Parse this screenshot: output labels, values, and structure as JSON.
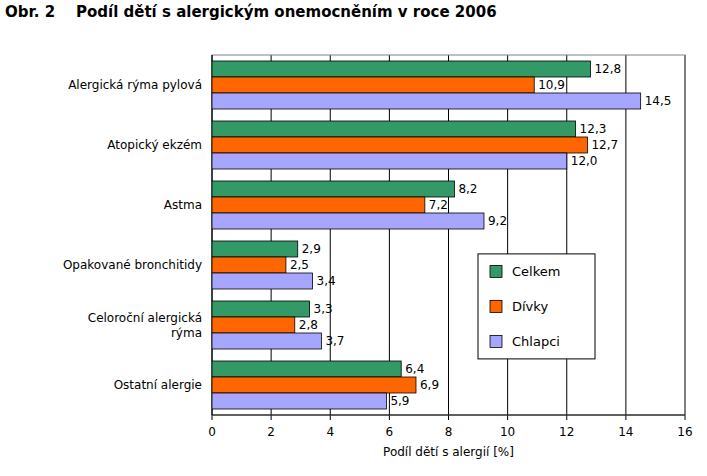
{
  "chart_data": {
    "type": "bar",
    "orientation": "horizontal",
    "title": "Obr. 2    Podíl dětí s alergickým onemocněním v roce 2006",
    "categories": [
      "Alergická rýma pylová",
      "Atopický ekzém",
      "Astma",
      "Opakované bronchitidy",
      "Celoroční alergická rýma",
      "Ostatní alergie"
    ],
    "series": [
      {
        "name": "Celkem",
        "color": "#339966",
        "values": [
          12.8,
          12.3,
          8.2,
          2.9,
          3.3,
          6.4
        ],
        "value_labels": [
          "12,8",
          "12,3",
          "8,2",
          "2,9",
          "3,3",
          "6,4"
        ]
      },
      {
        "name": "Dívky",
        "color": "#ff6600",
        "values": [
          10.9,
          12.7,
          7.2,
          2.5,
          2.8,
          6.9
        ],
        "value_labels": [
          "10,9",
          "12,7",
          "7,2",
          "2,5",
          "2,8",
          "6,9"
        ]
      },
      {
        "name": "Chlapci",
        "color": "#a6a6ff",
        "values": [
          14.5,
          12.0,
          9.2,
          3.4,
          3.7,
          5.9
        ],
        "value_labels": [
          "14,5",
          "12,0",
          "9,2",
          "3,4",
          "3,7",
          "5,9"
        ]
      }
    ],
    "xlim": [
      0,
      16
    ],
    "xticks": [
      0,
      2,
      4,
      6,
      8,
      10,
      12,
      14,
      16
    ],
    "xlabel": "Podíl dětí s alergií [%]",
    "grid": true,
    "legend": "right",
    "data_labels": true
  }
}
